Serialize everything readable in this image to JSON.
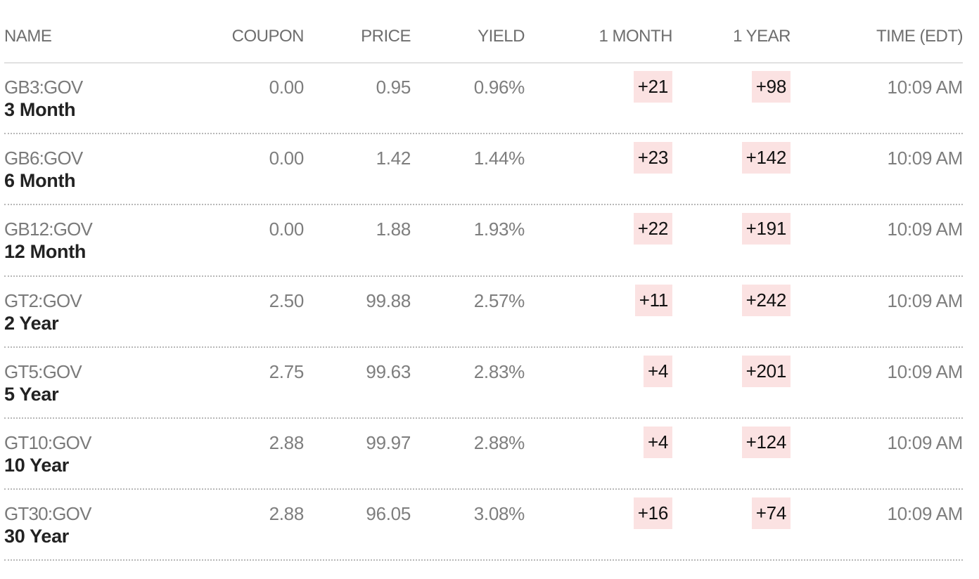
{
  "columns": {
    "name": "NAME",
    "coupon": "COUPON",
    "price": "PRICE",
    "yield": "YIELD",
    "one_month": "1 MONTH",
    "one_year": "1 YEAR",
    "time": "TIME (EDT)"
  },
  "colors": {
    "change_positive_bg": "#fbe2e2",
    "term_text": "#222222",
    "muted_text": "#7a7a7a"
  },
  "rows": [
    {
      "ticker": "GB3:GOV",
      "term": "3 Month",
      "coupon": "0.00",
      "price": "0.95",
      "yield": "0.96%",
      "one_month": "+21",
      "one_year": "+98",
      "time": "10:09 AM"
    },
    {
      "ticker": "GB6:GOV",
      "term": "6 Month",
      "coupon": "0.00",
      "price": "1.42",
      "yield": "1.44%",
      "one_month": "+23",
      "one_year": "+142",
      "time": "10:09 AM"
    },
    {
      "ticker": "GB12:GOV",
      "term": "12 Month",
      "coupon": "0.00",
      "price": "1.88",
      "yield": "1.93%",
      "one_month": "+22",
      "one_year": "+191",
      "time": "10:09 AM"
    },
    {
      "ticker": "GT2:GOV",
      "term": "2 Year",
      "coupon": "2.50",
      "price": "99.88",
      "yield": "2.57%",
      "one_month": "+11",
      "one_year": "+242",
      "time": "10:09 AM"
    },
    {
      "ticker": "GT5:GOV",
      "term": "5 Year",
      "coupon": "2.75",
      "price": "99.63",
      "yield": "2.83%",
      "one_month": "+4",
      "one_year": "+201",
      "time": "10:09 AM"
    },
    {
      "ticker": "GT10:GOV",
      "term": "10 Year",
      "coupon": "2.88",
      "price": "99.97",
      "yield": "2.88%",
      "one_month": "+4",
      "one_year": "+124",
      "time": "10:09 AM"
    },
    {
      "ticker": "GT30:GOV",
      "term": "30 Year",
      "coupon": "2.88",
      "price": "96.05",
      "yield": "3.08%",
      "one_month": "+16",
      "one_year": "+74",
      "time": "10:09 AM"
    }
  ]
}
